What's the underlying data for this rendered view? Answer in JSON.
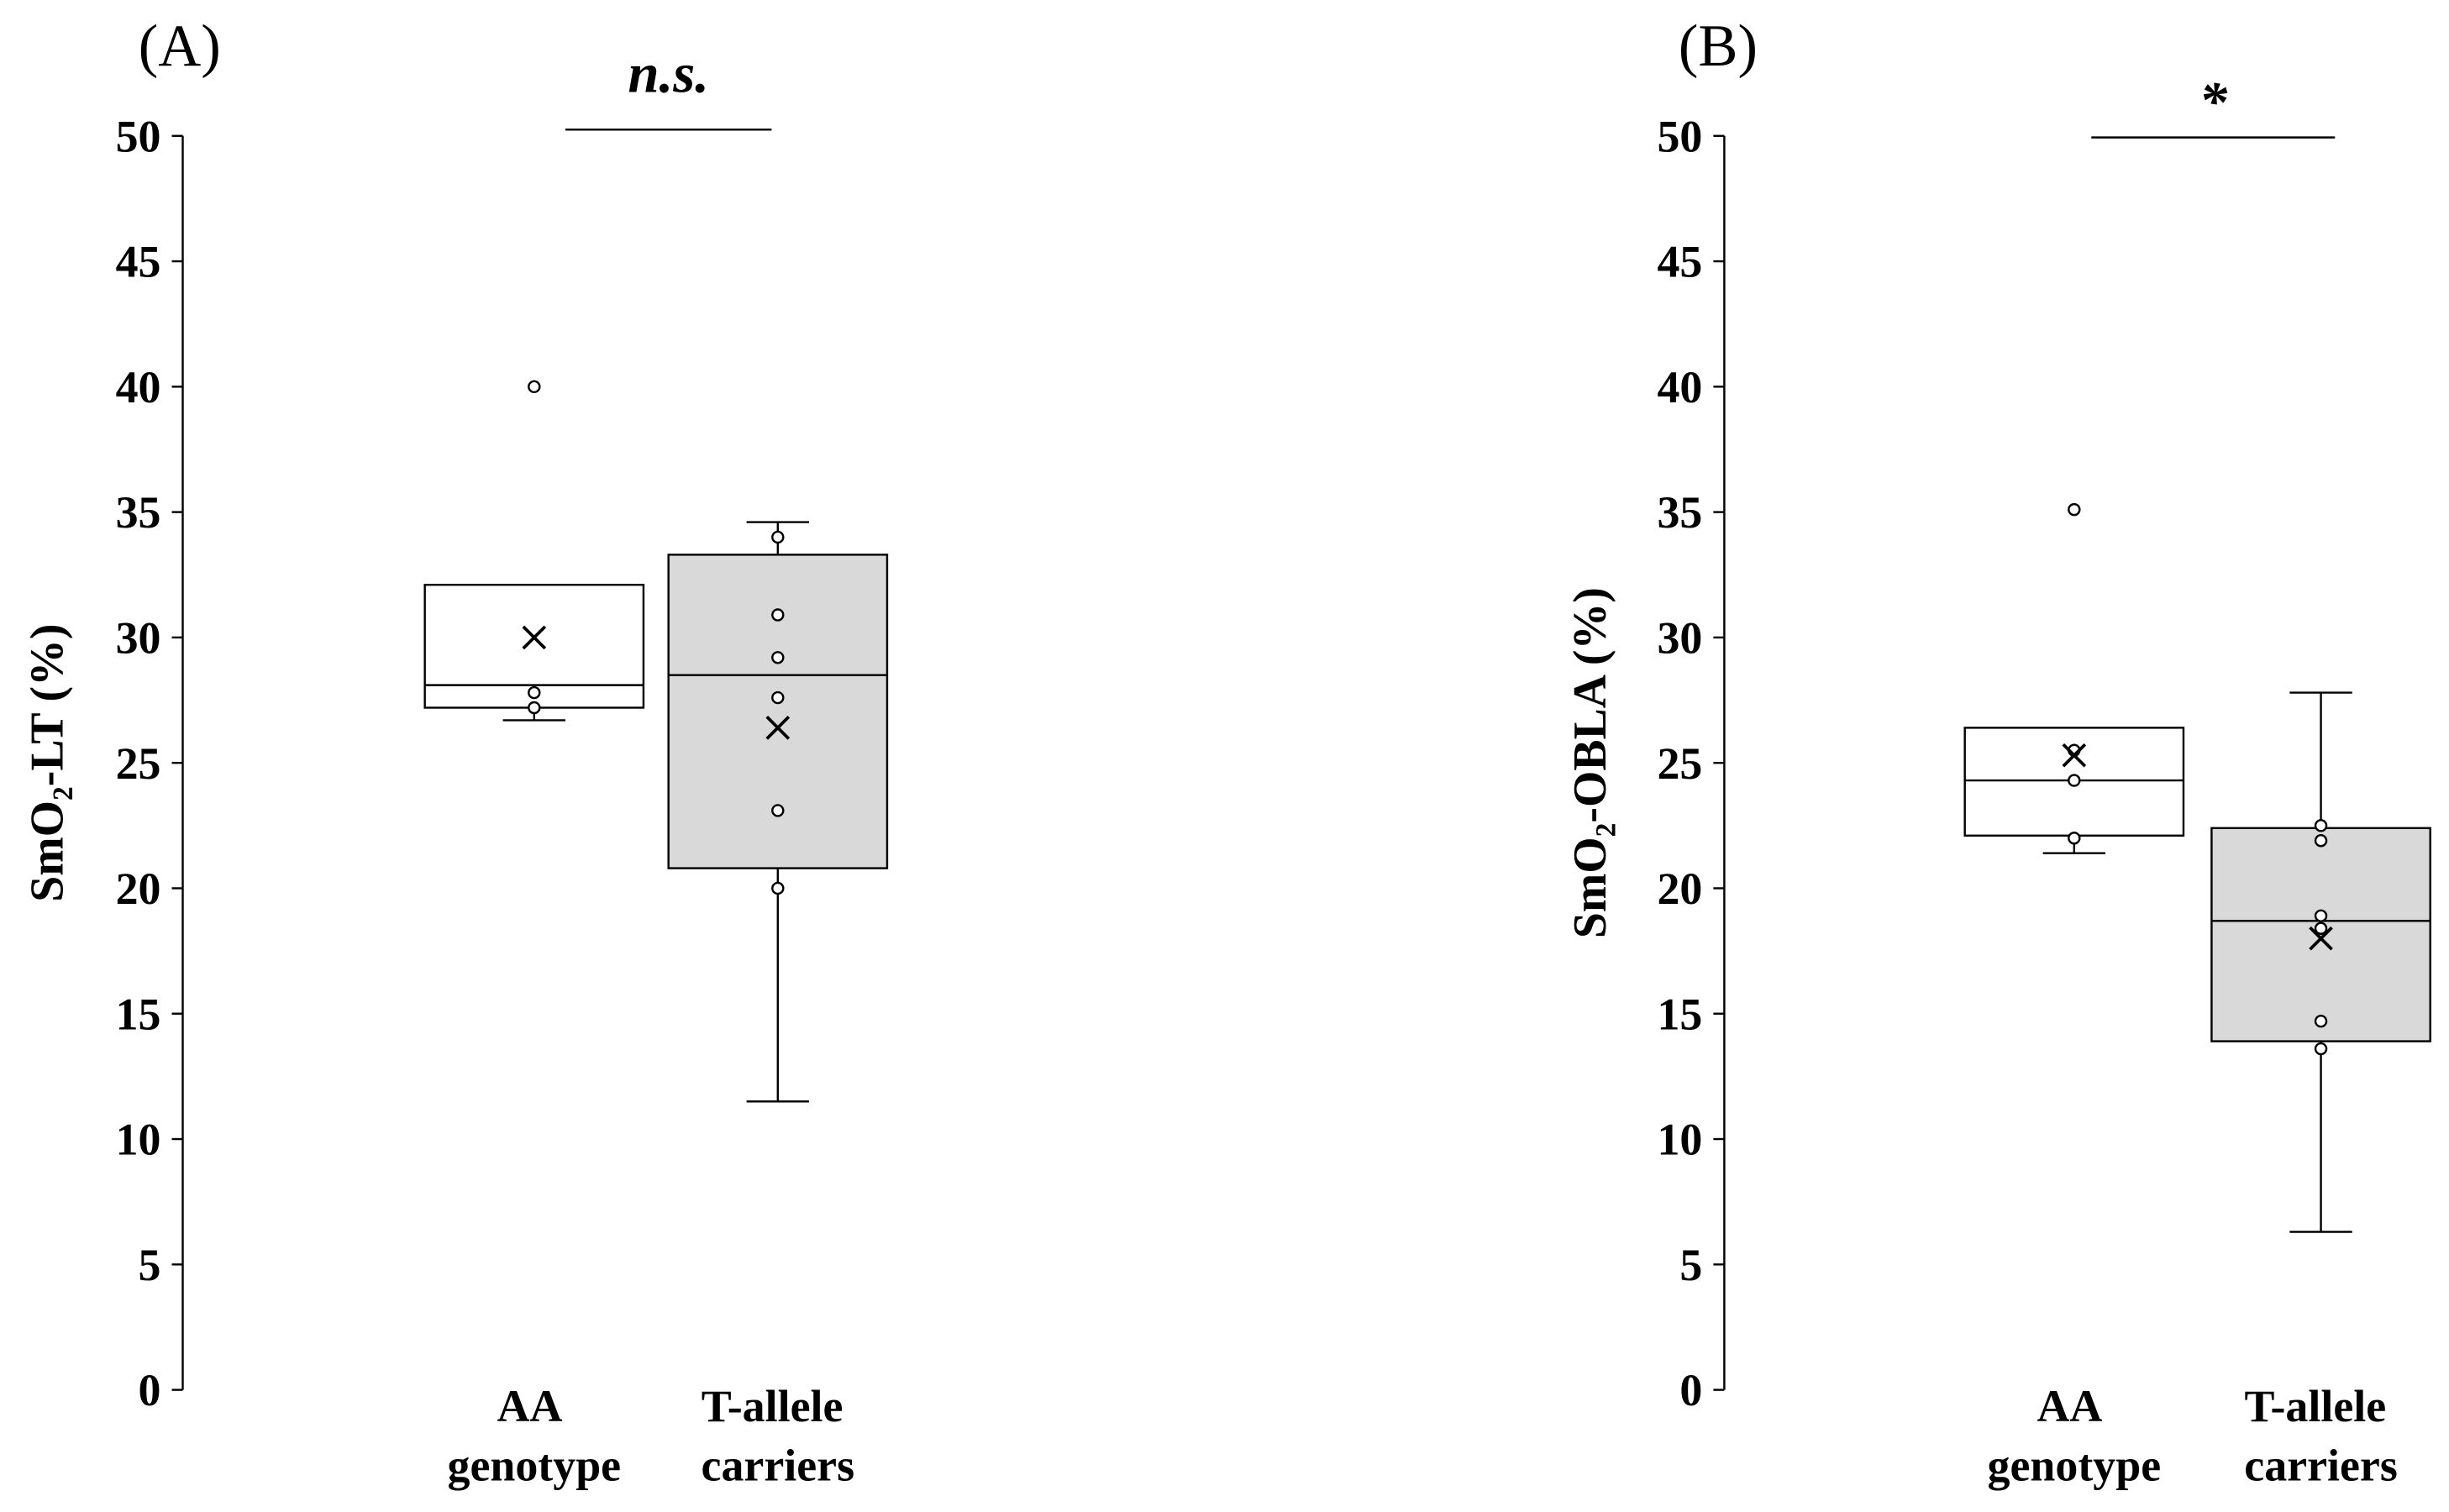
{
  "chart_data": [
    {
      "type": "box",
      "title": "(A)",
      "y_label": "SmO₂-LT (%)",
      "annotation": "n.s.",
      "categories": [
        "AA genotype",
        "T-allele carriers"
      ],
      "colors": [
        "#ffffff",
        "#d9d9d9"
      ],
      "ylim": [
        0,
        50
      ],
      "yticks": [
        0,
        5,
        10,
        15,
        20,
        25,
        30,
        35,
        40,
        45,
        50
      ],
      "boxes": [
        {
          "whisker_low": 26.7,
          "q1": 27.2,
          "median": 28.1,
          "q3": 32.1,
          "whisker_high": null,
          "mean": 30.0,
          "points": [
            40.0,
            27.8,
            27.2
          ]
        },
        {
          "whisker_low": 11.5,
          "q1": 20.8,
          "median": 28.5,
          "q3": 33.3,
          "whisker_high": 34.6,
          "mean": 26.4,
          "points": [
            34.0,
            30.9,
            29.2,
            27.6,
            23.1,
            20.0
          ]
        }
      ]
    },
    {
      "type": "box",
      "title": "(B)",
      "y_label": "SmO₂-OBLA (%)",
      "annotation": "*",
      "categories": [
        "AA genotype",
        "T-allele carriers"
      ],
      "colors": [
        "#ffffff",
        "#d9d9d9"
      ],
      "ylim": [
        0,
        50
      ],
      "yticks": [
        0,
        5,
        10,
        15,
        20,
        25,
        30,
        35,
        40,
        45,
        50
      ],
      "boxes": [
        {
          "whisker_low": 21.4,
          "q1": 22.1,
          "median": 24.3,
          "q3": 26.4,
          "whisker_high": null,
          "mean": 25.3,
          "points": [
            35.1,
            25.5,
            24.3,
            22.0
          ]
        },
        {
          "whisker_low": 6.3,
          "q1": 13.9,
          "median": 18.7,
          "q3": 22.4,
          "whisker_high": 27.8,
          "mean": 18.0,
          "points": [
            22.5,
            21.9,
            18.9,
            18.4,
            14.7,
            13.6
          ]
        }
      ]
    }
  ]
}
